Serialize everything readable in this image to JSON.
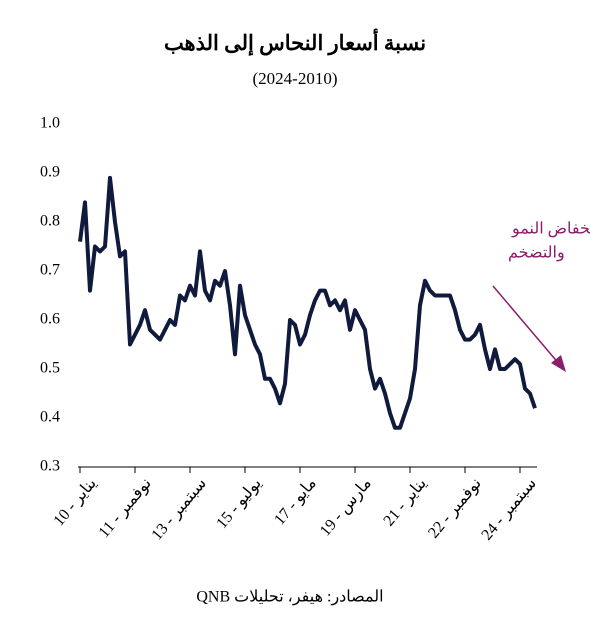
{
  "chart_data": {
    "type": "line",
    "title": "نسبة أسعار النحاس إلى الذهب",
    "subtitle": "(2024-2010)",
    "annotation": [
      "انخفاض النمو",
      "والتضخم"
    ],
    "source": "المصادر: هيفر، تحليلات QNB",
    "color": "#0f1a3c",
    "categories": [
      "يناير - 10",
      null,
      null,
      null,
      null,
      null,
      null,
      null,
      null,
      null,
      null,
      "نوفمبر - 11",
      null,
      null,
      null,
      null,
      null,
      null,
      null,
      null,
      null,
      null,
      "سبتمبر - 13",
      null,
      null,
      null,
      null,
      null,
      null,
      null,
      null,
      null,
      null,
      "يوليو - 15",
      null,
      null,
      null,
      null,
      null,
      null,
      null,
      null,
      null,
      null,
      "مايو - 17",
      null,
      null,
      null,
      null,
      null,
      null,
      null,
      null,
      null,
      null,
      "مارس - 19",
      null,
      null,
      null,
      null,
      null,
      null,
      null,
      null,
      null,
      null,
      "يناير - 21",
      null,
      null,
      null,
      null,
      null,
      null,
      null,
      null,
      null,
      null,
      "نوفمبر - 22",
      null,
      null,
      null,
      null,
      null,
      null,
      null,
      null,
      null,
      null,
      "سبتمبر - 24",
      null,
      null,
      null
    ],
    "values": [
      0.76,
      0.84,
      0.66,
      0.75,
      0.74,
      0.75,
      0.89,
      0.8,
      0.73,
      0.74,
      0.55,
      0.57,
      0.59,
      0.62,
      0.58,
      0.57,
      0.56,
      0.58,
      0.6,
      0.59,
      0.65,
      0.64,
      0.67,
      0.65,
      0.74,
      0.66,
      0.64,
      0.68,
      0.67,
      0.7,
      0.63,
      0.53,
      0.67,
      0.61,
      0.58,
      0.55,
      0.53,
      0.48,
      0.48,
      0.46,
      0.43,
      0.47,
      0.6,
      0.59,
      0.55,
      0.57,
      0.61,
      0.64,
      0.66,
      0.66,
      0.63,
      0.64,
      0.62,
      0.64,
      0.58,
      0.62,
      0.6,
      0.58,
      0.5,
      0.46,
      0.48,
      0.45,
      0.41,
      0.38,
      0.38,
      0.41,
      0.44,
      0.5,
      0.63,
      0.68,
      0.66,
      0.65,
      0.65,
      0.65,
      0.65,
      0.62,
      0.58,
      0.56,
      0.56,
      0.57,
      0.59,
      0.54,
      0.5,
      0.54,
      0.5,
      0.5,
      0.51,
      0.52,
      0.51,
      0.46,
      0.45,
      0.42
    ],
    "ylim": [
      0.3,
      1.0
    ],
    "yticks": [
      0.3,
      0.4,
      0.5,
      0.6,
      0.7,
      0.8,
      0.9,
      {
        "value": 1.0,
        "label": "1.0"
      }
    ]
  }
}
